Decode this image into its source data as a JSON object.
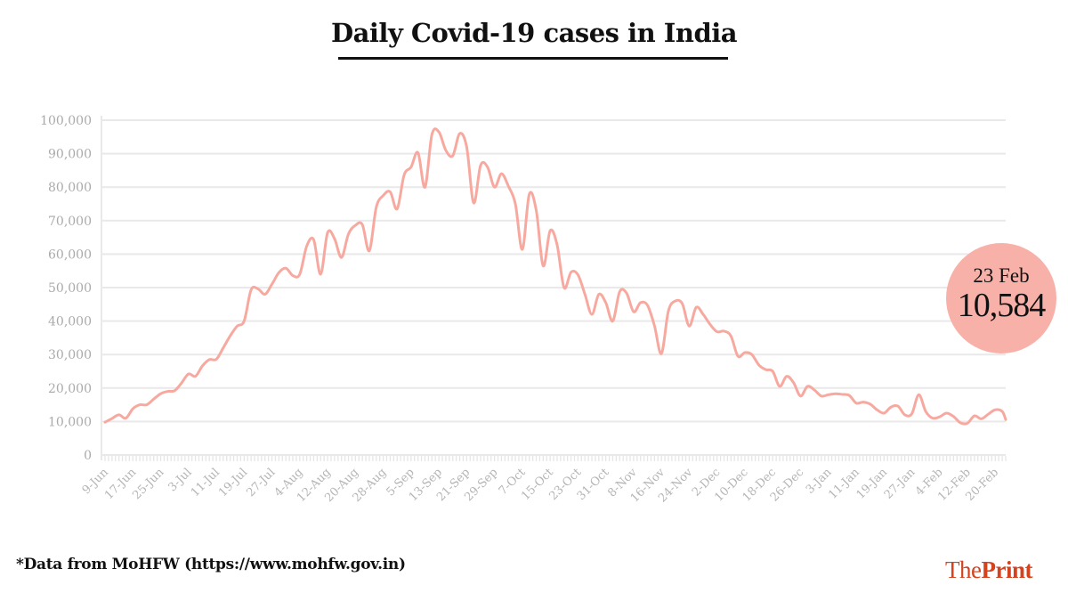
{
  "chart_data": {
    "type": "line",
    "title": "Daily Covid-19 cases in India",
    "xlabel": "",
    "ylabel": "",
    "ylim": [
      0,
      100000
    ],
    "yticks": [
      0,
      10000,
      20000,
      30000,
      40000,
      50000,
      60000,
      70000,
      80000,
      90000,
      100000
    ],
    "ytick_labels": [
      "0",
      "10,000",
      "20,000",
      "30,000",
      "40,000",
      "50,000",
      "60,000",
      "70,000",
      "80,000",
      "90,000",
      "100,000"
    ],
    "xtick_labels": [
      "9-Jun",
      "17-Jun",
      "25-Jun",
      "3-Jul",
      "11-Jul",
      "19-Jul",
      "27-Jul",
      "4-Aug",
      "12-Aug",
      "20-Aug",
      "28-Aug",
      "5-Sep",
      "13-Sep",
      "21-Sep",
      "29-Sep",
      "7-Oct",
      "15-Oct",
      "23-Oct",
      "31-Oct",
      "8-Nov",
      "16-Nov",
      "24-Nov",
      "2-Dec",
      "10-Dec",
      "18-Dec",
      "26-Dec",
      "3-Jan",
      "11-Jan",
      "19-Jan",
      "27-Jan",
      "4-Feb",
      "12-Feb",
      "20-Feb"
    ],
    "grid": true,
    "line_color": "#f7a9a0",
    "x": [
      "9-Jun",
      "11-Jun",
      "13-Jun",
      "15-Jun",
      "17-Jun",
      "19-Jun",
      "21-Jun",
      "23-Jun",
      "25-Jun",
      "27-Jun",
      "29-Jun",
      "1-Jul",
      "3-Jul",
      "5-Jul",
      "7-Jul",
      "9-Jul",
      "11-Jul",
      "13-Jul",
      "15-Jul",
      "17-Jul",
      "19-Jul",
      "21-Jul",
      "23-Jul",
      "25-Jul",
      "27-Jul",
      "29-Jul",
      "31-Jul",
      "2-Aug",
      "4-Aug",
      "6-Aug",
      "8-Aug",
      "10-Aug",
      "12-Aug",
      "14-Aug",
      "16-Aug",
      "18-Aug",
      "20-Aug",
      "22-Aug",
      "24-Aug",
      "26-Aug",
      "28-Aug",
      "30-Aug",
      "1-Sep",
      "3-Sep",
      "5-Sep",
      "7-Sep",
      "9-Sep",
      "11-Sep",
      "13-Sep",
      "15-Sep",
      "17-Sep",
      "19-Sep",
      "21-Sep",
      "23-Sep",
      "25-Sep",
      "27-Sep",
      "29-Sep",
      "1-Oct",
      "3-Oct",
      "5-Oct",
      "7-Oct",
      "9-Oct",
      "11-Oct",
      "13-Oct",
      "15-Oct",
      "17-Oct",
      "19-Oct",
      "21-Oct",
      "23-Oct",
      "25-Oct",
      "27-Oct",
      "29-Oct",
      "31-Oct",
      "2-Nov",
      "4-Nov",
      "6-Nov",
      "8-Nov",
      "10-Nov",
      "12-Nov",
      "14-Nov",
      "16-Nov",
      "18-Nov",
      "20-Nov",
      "22-Nov",
      "24-Nov",
      "26-Nov",
      "28-Nov",
      "30-Nov",
      "2-Dec",
      "4-Dec",
      "6-Dec",
      "8-Dec",
      "10-Dec",
      "12-Dec",
      "14-Dec",
      "16-Dec",
      "18-Dec",
      "20-Dec",
      "22-Dec",
      "24-Dec",
      "26-Dec",
      "28-Dec",
      "30-Dec",
      "1-Jan",
      "3-Jan",
      "5-Jan",
      "7-Jan",
      "9-Jan",
      "11-Jan",
      "13-Jan",
      "15-Jan",
      "17-Jan",
      "19-Jan",
      "21-Jan",
      "23-Jan",
      "25-Jan",
      "27-Jan",
      "29-Jan",
      "31-Jan",
      "2-Feb",
      "4-Feb",
      "6-Feb",
      "8-Feb",
      "10-Feb",
      "12-Feb",
      "14-Feb",
      "16-Feb",
      "18-Feb",
      "20-Feb",
      "22-Feb",
      "23-Feb"
    ],
    "values": [
      9800,
      10900,
      12000,
      11000,
      13800,
      15000,
      15000,
      16700,
      18300,
      19000,
      19200,
      21500,
      24200,
      23500,
      26600,
      28500,
      28600,
      32000,
      35600,
      38500,
      40000,
      49300,
      49600,
      48000,
      51000,
      54500,
      55800,
      53600,
      54000,
      62400,
      64300,
      54000,
      66400,
      64600,
      59000,
      66000,
      68600,
      68800,
      61000,
      74000,
      77500,
      78600,
      73500,
      83600,
      86000,
      90300,
      80000,
      95700,
      96500,
      91000,
      89400,
      96000,
      92000,
      75300,
      86500,
      86000,
      80000,
      84000,
      80300,
      75000,
      61400,
      77900,
      73100,
      56500,
      67000,
      62800,
      50000,
      54600,
      53800,
      48000,
      42000,
      48000,
      45500,
      40000,
      48800,
      48300,
      42800,
      45500,
      44700,
      38600,
      30300,
      43000,
      46000,
      45200,
      38500,
      44100,
      42000,
      39000,
      36800,
      37000,
      35500,
      29500,
      30600,
      30000,
      26900,
      25500,
      25000,
      20500,
      23500,
      21600,
      17600,
      20500,
      19400,
      17600,
      18000,
      18300,
      18100,
      17800,
      15500,
      15800,
      15200,
      13500,
      12500,
      14300,
      14600,
      12000,
      12300,
      18000,
      13000,
      11000,
      11400,
      12500,
      11500,
      9600,
      9500,
      11700,
      10800,
      12200,
      13500,
      13000,
      10584
    ]
  },
  "callout": {
    "date": "23 Feb",
    "value": "10,584",
    "color": "#f8b1a8"
  },
  "footer": {
    "source": "*Data from MoHFW (https://www.mohfw.gov.in)"
  },
  "logo": {
    "part1": "The",
    "part2": "Print",
    "color": "#d4421e"
  }
}
